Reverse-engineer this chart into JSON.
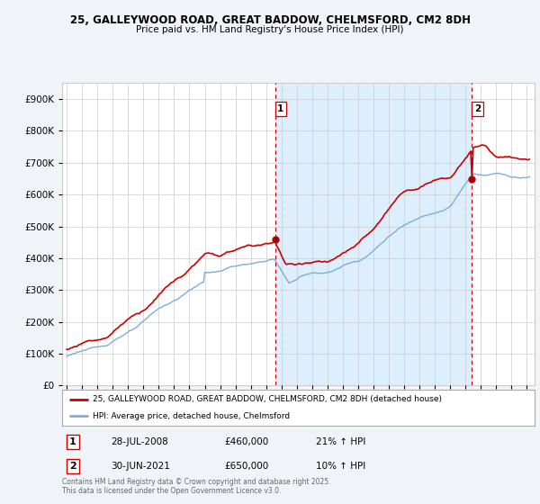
{
  "title1": "25, GALLEYWOOD ROAD, GREAT BADDOW, CHELMSFORD, CM2 8DH",
  "title2": "Price paid vs. HM Land Registry's House Price Index (HPI)",
  "ytick_vals": [
    0,
    100000,
    200000,
    300000,
    400000,
    500000,
    600000,
    700000,
    800000,
    900000
  ],
  "ylim": [
    0,
    950000
  ],
  "marker1_year": 2008,
  "marker1_month": 7,
  "marker1_price": 460000,
  "marker2_year": 2021,
  "marker2_month": 6,
  "marker2_price": 650000,
  "legend_line1": "25, GALLEYWOOD ROAD, GREAT BADDOW, CHELMSFORD, CM2 8DH (detached house)",
  "legend_line2": "HPI: Average price, detached house, Chelmsford",
  "table_row1": [
    "1",
    "28-JUL-2008",
    "£460,000",
    "21% ↑ HPI"
  ],
  "table_row2": [
    "2",
    "30-JUN-2021",
    "£650,000",
    "10% ↑ HPI"
  ],
  "footer": "Contains HM Land Registry data © Crown copyright and database right 2025.\nThis data is licensed under the Open Government Licence v3.0.",
  "line_color_red": "#cc0000",
  "line_color_blue": "#7bafd4",
  "vline_color": "#cc0000",
  "shade_color": "#ddeeff",
  "bg_color": "#f0f4f8",
  "plot_bg": "#ffffff",
  "grid_color": "#cccccc"
}
